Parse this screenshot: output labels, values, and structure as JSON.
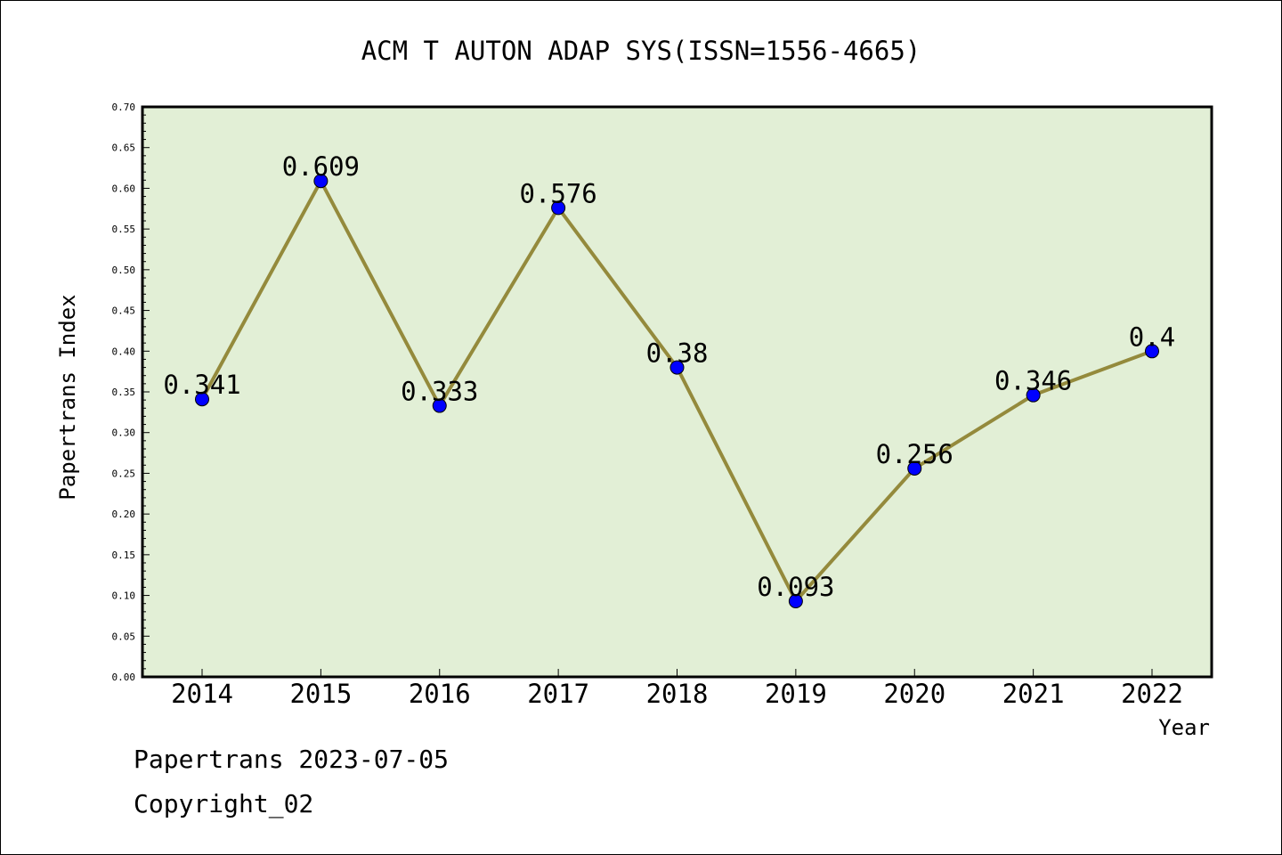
{
  "chart_data": {
    "type": "line",
    "title": "ACM T AUTON ADAP SYS(ISSN=1556-4665)",
    "xlabel": "Year",
    "ylabel": "Papertrans Index",
    "categories": [
      "2014",
      "2015",
      "2016",
      "2017",
      "2018",
      "2019",
      "2020",
      "2021",
      "2022"
    ],
    "series": [
      {
        "values": [
          0.341,
          0.609,
          0.333,
          0.576,
          0.38,
          0.093,
          0.256,
          0.346,
          0.4
        ],
        "labels": [
          "0.341",
          "0.609",
          "0.333",
          "0.576",
          "0.38",
          "0.093",
          "0.256",
          "0.346",
          "0.4"
        ]
      }
    ],
    "ylim": [
      0,
      0.7
    ],
    "yticks": [
      "0.00",
      "0.05",
      "0.10",
      "0.15",
      "0.20",
      "0.25",
      "0.30",
      "0.35",
      "0.40",
      "0.45",
      "0.50",
      "0.55",
      "0.60",
      "0.65",
      "0.70"
    ],
    "grid": false,
    "colors": {
      "plot_background": "#e2efd6",
      "line": "#948a3c",
      "marker": "#0000ff"
    }
  },
  "footer": {
    "date_text": "Papertrans 2023-07-05",
    "copyright_text": "Copyright_02"
  }
}
